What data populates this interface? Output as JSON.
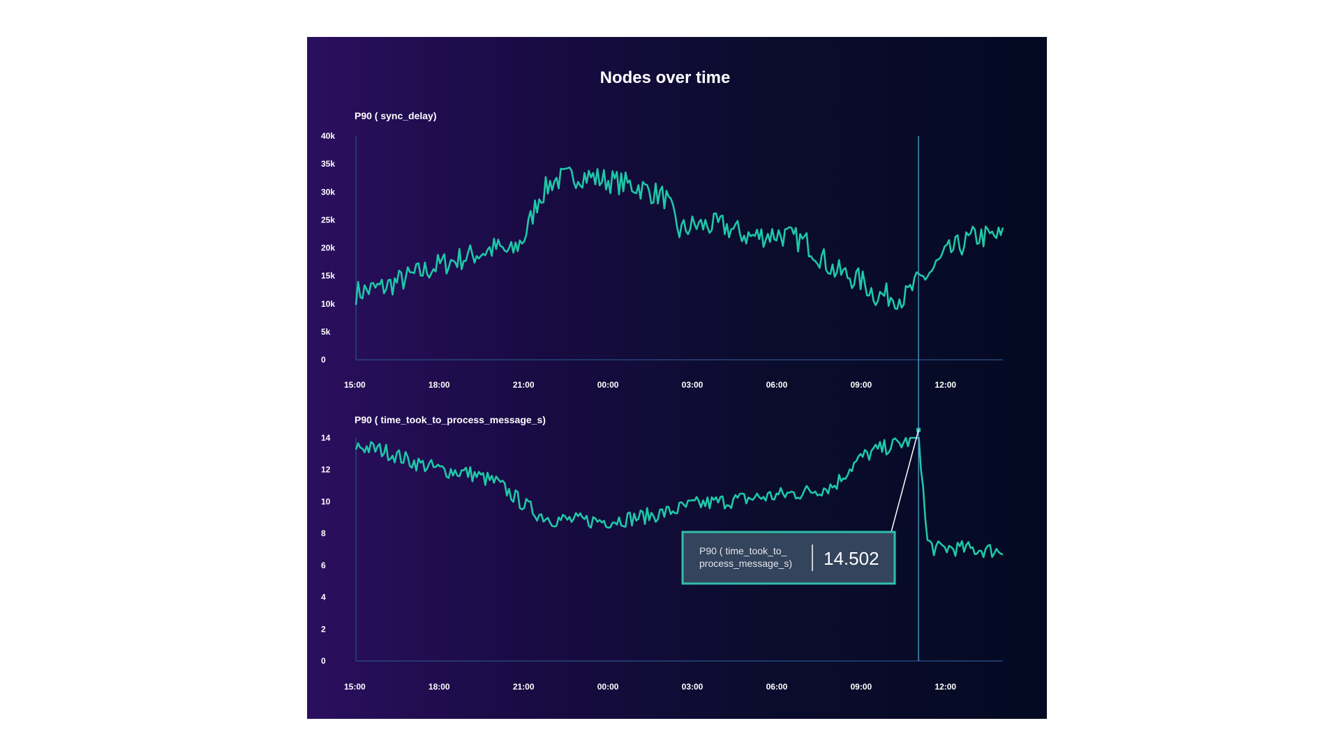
{
  "colors": {
    "series": "#1ec8a8",
    "axis": "#27467a",
    "crosshair": "#4fa6d6",
    "tooltip_bg": "#33445c",
    "tooltip_border": "#2fc0a8"
  },
  "chart_data": {
    "type": "line",
    "title": "Nodes over time",
    "x_tick_labels": [
      "15:00",
      "18:00",
      "21:00",
      "00:00",
      "03:00",
      "06:00",
      "09:00",
      "12:00"
    ],
    "x_range_hours": [
      0,
      23
    ],
    "crosshair_hours": 20,
    "charts": [
      {
        "subtitle": "P90 ( sync_delay)",
        "ylim": [
          0,
          40000
        ],
        "y_ticks": [
          0,
          5000,
          10000,
          15000,
          20000,
          25000,
          30000,
          35000,
          40000
        ],
        "y_tick_labels": [
          "0",
          "5k",
          "10k",
          "15k",
          "20k",
          "25k",
          "30k",
          "35k",
          "40k"
        ],
        "x_hours": [
          0,
          1,
          2,
          3,
          4,
          5,
          5.5,
          6,
          6.5,
          7,
          8,
          9,
          10,
          11,
          11.5,
          12,
          13,
          14,
          15,
          16,
          17,
          18,
          18.5,
          19,
          19.5,
          20,
          20.5,
          21,
          22,
          23
        ],
        "values": [
          12000,
          13000,
          15000,
          17000,
          18500,
          20000,
          19000,
          22000,
          29000,
          32000,
          33000,
          32000,
          31000,
          29000,
          23000,
          24000,
          24000,
          22000,
          22500,
          21000,
          16000,
          14000,
          11500,
          11500,
          11000,
          14000,
          16000,
          19000,
          22000,
          22000
        ],
        "noise_amplitude": 2200
      },
      {
        "subtitle": "P90 ( time_took_to_process_message_s)",
        "ylim": [
          0,
          14
        ],
        "y_ticks": [
          0,
          2,
          4,
          6,
          8,
          10,
          12,
          14
        ],
        "y_tick_labels": [
          "0",
          "2",
          "4",
          "6",
          "8",
          "10",
          "12",
          "14"
        ],
        "x_hours": [
          0,
          1,
          2,
          3,
          4,
          5,
          5.5,
          6,
          6.5,
          7,
          8,
          9,
          10,
          11,
          12,
          13,
          14,
          15,
          16,
          17,
          17.5,
          18,
          18.5,
          19,
          19.5,
          19.8,
          20,
          20.3,
          20.6,
          21,
          22,
          23
        ],
        "values": [
          13.5,
          13.2,
          12.5,
          12.0,
          11.8,
          11.2,
          10.5,
          9.8,
          9.2,
          8.9,
          8.8,
          8.8,
          9.0,
          9.3,
          9.8,
          10.0,
          10.2,
          10.4,
          10.6,
          11.0,
          12.0,
          12.8,
          13.2,
          13.5,
          13.7,
          13.9,
          14.5,
          7.5,
          7.0,
          7.1,
          7.0,
          6.9
        ],
        "noise_amplitude": 0.5,
        "tooltip": {
          "name": "P90 ( time_took_to_ process_message_s)",
          "value": "14.502",
          "name_lines": [
            "P90 ( time_took_to_",
            "process_message_s)"
          ]
        }
      }
    ]
  }
}
